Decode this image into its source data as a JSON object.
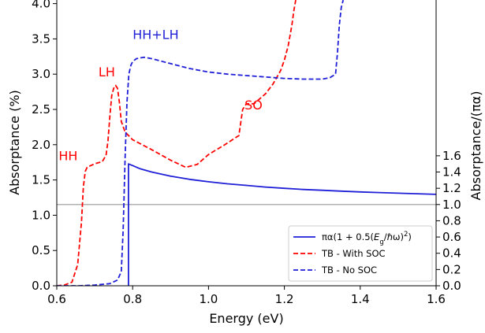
{
  "chart_data": {
    "type": "line",
    "xlabel": "Energy (eV)",
    "ylabel": "Absorptance (%)",
    "ylabel_right": "Absorptance/(πα)",
    "xlim": [
      0.6,
      1.6
    ],
    "ylim": [
      0,
      4.0
    ],
    "ylim_right": [
      0,
      1.74
    ],
    "x_ticks": [
      "0.6",
      "0.8",
      "1.0",
      "1.2",
      "1.4",
      "1.6"
    ],
    "x_tick_values": [
      0.6,
      0.8,
      1.0,
      1.2,
      1.4,
      1.6
    ],
    "y_ticks": [
      "0.0",
      "0.5",
      "1.0",
      "1.5",
      "2.0",
      "2.5",
      "3.0",
      "3.5",
      "4.0"
    ],
    "y_tick_values": [
      0.0,
      0.5,
      1.0,
      1.5,
      2.0,
      2.5,
      3.0,
      3.5,
      4.0
    ],
    "y_ticks_right": [
      "0.0",
      "0.2",
      "0.4",
      "0.6",
      "0.8",
      "1.0",
      "1.2",
      "1.4",
      "1.6"
    ],
    "y_tick_values_right": [
      0.0,
      0.2,
      0.4,
      0.6,
      0.8,
      1.0,
      1.2,
      1.4,
      1.6
    ],
    "reference_line": {
      "y_right": 1.0,
      "color": "#999999"
    },
    "legend": {
      "placement": "lower-right",
      "entries": [
        {
          "label_prefix": "πα(1 + 0.5(",
          "label_math": "E",
          "label_sub": "g",
          "label_suffix": "/ℏω)",
          "label_sup": "2",
          "label_close": ")",
          "color": "#1f1fd8",
          "style": "solid"
        },
        {
          "label": "TB - With SOC",
          "color": "#ff0000",
          "style": "dashed"
        },
        {
          "label": "TB - No SOC",
          "color": "#1f1fd8",
          "style": "dashed"
        }
      ]
    },
    "annotations": [
      {
        "text": "HH+LH",
        "color": "#1f1fd8",
        "x": 0.8,
        "y": 3.5
      },
      {
        "text": "LH",
        "color": "#ff0000",
        "x": 0.71,
        "y": 2.97
      },
      {
        "text": "SO",
        "color": "#ff0000",
        "x": 1.095,
        "y": 2.5
      },
      {
        "text": "HH",
        "color": "#ff0000",
        "x": 0.605,
        "y": 1.78
      }
    ],
    "series": [
      {
        "axis": "right",
        "color": "#1f1fd8",
        "style": "solid",
        "x": [
          0.789,
          0.789,
          0.8,
          0.82,
          0.85,
          0.9,
          0.95,
          1.0,
          1.05,
          1.1,
          1.15,
          1.2,
          1.25,
          1.3,
          1.35,
          1.4,
          1.45,
          1.5,
          1.55,
          1.6
        ],
        "y": [
          0.0,
          1.5,
          1.48,
          1.44,
          1.4,
          1.35,
          1.31,
          1.28,
          1.255,
          1.235,
          1.215,
          1.2,
          1.185,
          1.175,
          1.165,
          1.155,
          1.147,
          1.14,
          1.133,
          1.125
        ]
      },
      {
        "axis": "left",
        "color": "#ff0000",
        "style": "dashed",
        "x": [
          0.6,
          0.62,
          0.64,
          0.655,
          0.665,
          0.67,
          0.675,
          0.68,
          0.7,
          0.72,
          0.73,
          0.735,
          0.74,
          0.745,
          0.75,
          0.755,
          0.76,
          0.765,
          0.77,
          0.78,
          0.8,
          0.85,
          0.9,
          0.94,
          0.97,
          1.0,
          1.04,
          1.08,
          1.09,
          1.1,
          1.12,
          1.15,
          1.17,
          1.19,
          1.2,
          1.21,
          1.22,
          1.225,
          1.23
        ],
        "y": [
          0.0,
          0.01,
          0.05,
          0.3,
          0.9,
          1.4,
          1.62,
          1.68,
          1.73,
          1.76,
          1.85,
          2.05,
          2.4,
          2.7,
          2.8,
          2.84,
          2.8,
          2.6,
          2.33,
          2.18,
          2.07,
          1.93,
          1.78,
          1.68,
          1.72,
          1.86,
          1.99,
          2.13,
          2.5,
          2.58,
          2.58,
          2.72,
          2.86,
          3.05,
          3.2,
          3.4,
          3.7,
          3.9,
          4.05
        ]
      },
      {
        "axis": "left",
        "color": "#1f1fd8",
        "style": "dashed",
        "x": [
          0.6,
          0.66,
          0.7,
          0.74,
          0.76,
          0.77,
          0.775,
          0.78,
          0.785,
          0.79,
          0.795,
          0.8,
          0.81,
          0.83,
          0.85,
          0.9,
          0.95,
          1.0,
          1.05,
          1.1,
          1.15,
          1.2,
          1.25,
          1.3,
          1.32,
          1.335,
          1.34,
          1.345,
          1.35,
          1.355
        ],
        "y": [
          0.0,
          0.0,
          0.01,
          0.03,
          0.08,
          0.2,
          0.8,
          1.8,
          2.6,
          3.0,
          3.12,
          3.18,
          3.22,
          3.24,
          3.22,
          3.15,
          3.08,
          3.03,
          3.0,
          2.98,
          2.96,
          2.94,
          2.93,
          2.93,
          2.95,
          3.0,
          3.3,
          3.7,
          3.95,
          4.05
        ]
      }
    ]
  }
}
